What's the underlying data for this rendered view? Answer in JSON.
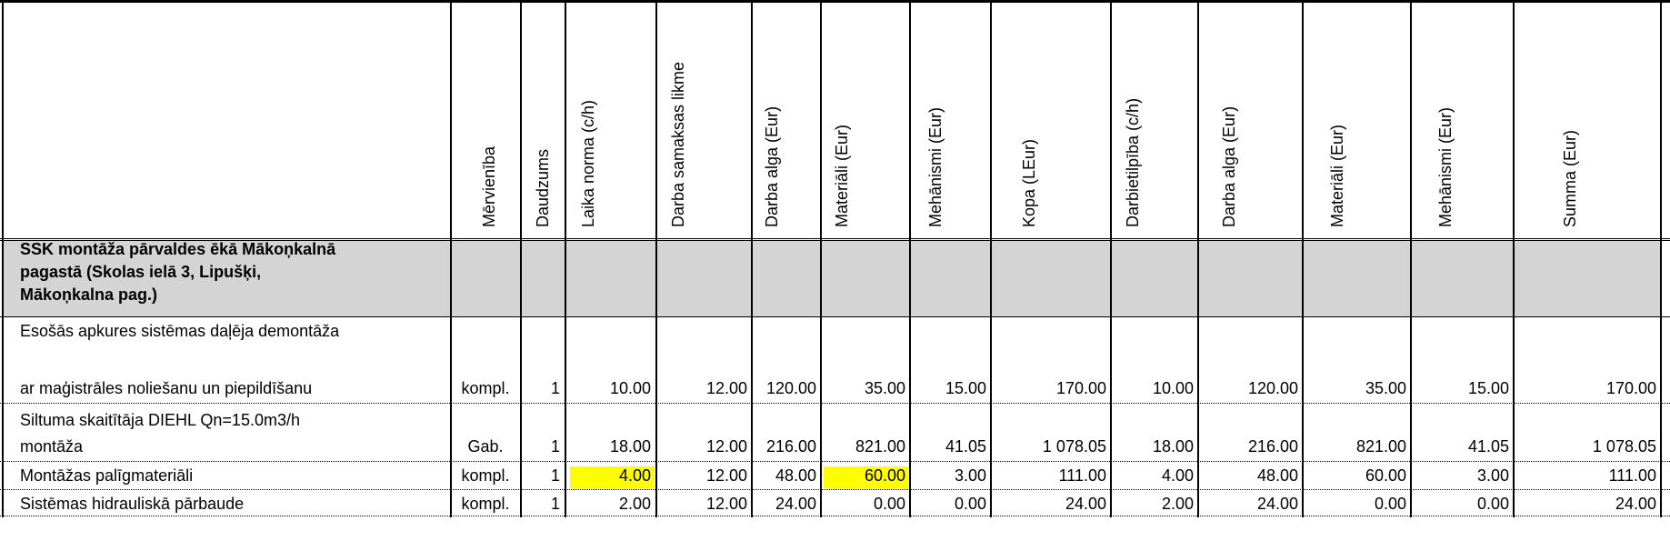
{
  "columns": [
    "Mērvienība",
    "Daudzums",
    "Laika norma (c/h)",
    "Darba samaksas likme",
    "Darba alga (Eur)",
    "Materiāli (Eur)",
    "Mehānismi (Eur)",
    "Kopa (LEur)",
    "Darbietilpība (c/h)",
    "Darba alga (Eur)",
    "Materiāli (Eur)",
    "Mehānismi (Eur)",
    "Summa (Eur)"
  ],
  "section": {
    "title_lines": [
      "SSK montāža pārvaldes ēkā Mākoņkalnā",
      "pagastā (Skolas ielā 3, Lipušķi,",
      "Mākoņkalna pag.)"
    ]
  },
  "rows": [
    {
      "desc_lines": [
        "Esošās apkures sistēmas daļēja demontāža",
        "",
        "ar maģistrāles noliešanu un piepildīšanu"
      ],
      "unit": "kompl.",
      "qty": "1",
      "values": [
        "10.00",
        "12.00",
        "120.00",
        "35.00",
        "15.00",
        "170.00",
        "10.00",
        "120.00",
        "35.00",
        "15.00",
        "170.00"
      ]
    },
    {
      "desc_lines": [
        "Siltuma skaitītāja DIEHL Qn=15.0m3/h",
        "montāža"
      ],
      "unit": "Gab.",
      "qty": "1",
      "values": [
        "18.00",
        "12.00",
        "216.00",
        "821.00",
        "41.05",
        "1 078.05",
        "18.00",
        "216.00",
        "821.00",
        "41.05",
        "1 078.05"
      ]
    },
    {
      "desc_lines": [
        "Montāžas palīgmateriāli"
      ],
      "unit": "kompl.",
      "qty": "1",
      "values": [
        "4.00",
        "12.00",
        "48.00",
        "60.00",
        "3.00",
        "111.00",
        "4.00",
        "48.00",
        "60.00",
        "3.00",
        "111.00"
      ]
    },
    {
      "desc_lines": [
        "Sistēmas hidrauliskā pārbaude"
      ],
      "unit": "kompl.",
      "qty": "1",
      "values": [
        "2.00",
        "12.00",
        "24.00",
        "0.00",
        "0.00",
        "24.00",
        "2.00",
        "24.00",
        "0.00",
        "0.00",
        "24.00"
      ]
    }
  ],
  "colors": {
    "section_fill": "#d4d4d4",
    "highlight": "#ffff00"
  }
}
